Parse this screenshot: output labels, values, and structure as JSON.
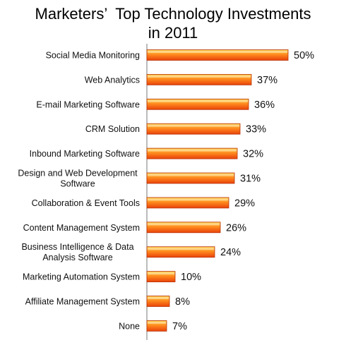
{
  "title_lines": [
    "Marketers’  Top Technology Investments",
    "in 2011"
  ],
  "colors": {
    "bar_light": "#ffd04a",
    "bar_mid": "#ff8a1e",
    "bar_dark": "#e8420a",
    "bar_border": "#b8340a",
    "axis": "#777777"
  },
  "chart_data": {
    "type": "bar",
    "orientation": "horizontal",
    "title": "Marketers’  Top Technology Investments in 2011",
    "xlabel": "",
    "ylabel": "",
    "value_format": "percent",
    "grid": false,
    "categories": [
      "Social Media Monitoring",
      "Web Analytics",
      "E-mail Marketing Software",
      "CRM Solution",
      "Inbound Marketing Software",
      "Design and Web Development\nSoftware",
      "Collaboration & Event Tools",
      "Content Management System",
      "Business Intelligence & Data\nAnalysis  Software",
      "Marketing Automation System",
      "Affiliate Management  System",
      "None"
    ],
    "values": [
      50,
      37,
      36,
      33,
      32,
      31,
      29,
      26,
      24,
      10,
      8,
      7
    ],
    "labels": [
      "50%",
      "37%",
      "36%",
      "33%",
      "32%",
      "31%",
      "29%",
      "26%",
      "24%",
      "10%",
      "8%",
      "7%"
    ]
  }
}
